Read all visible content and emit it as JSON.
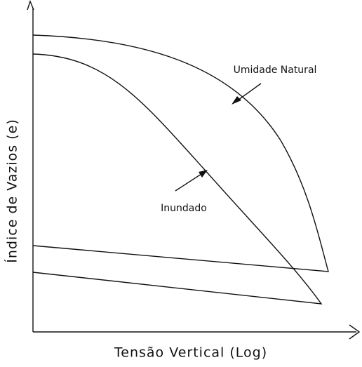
{
  "axes": {
    "y_label": "Índice de Vazios (e)",
    "x_label": "Tensão Vertical (Log)"
  },
  "annotations": [
    {
      "text": "Umidade Natural"
    },
    {
      "text": "Inundado"
    }
  ]
}
